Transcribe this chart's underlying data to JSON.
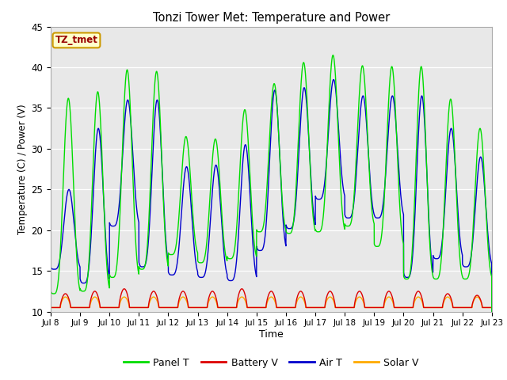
{
  "title": "Tonzi Tower Met: Temperature and Power",
  "xlabel": "Time",
  "ylabel": "Temperature (C) / Power (V)",
  "ylim": [
    10,
    45
  ],
  "xlim": [
    0,
    15
  ],
  "x_tick_labels": [
    "Jul 8",
    "Jul 9",
    "Jul 10",
    "Jul 11",
    "Jul 12",
    "Jul 13",
    "Jul 14",
    "Jul 15",
    "Jul 16",
    "Jul 17",
    "Jul 18",
    "Jul 19",
    "Jul 20",
    "Jul 21",
    "Jul 22",
    "Jul 23"
  ],
  "fig_bg_color": "#ffffff",
  "plot_bg_color": "#e8e8e8",
  "panel_T_color": "#00dd00",
  "battery_V_color": "#dd0000",
  "air_T_color": "#0000cc",
  "solar_V_color": "#ffaa00",
  "legend_label_panel": "Panel T",
  "legend_label_battery": "Battery V",
  "legend_label_air": "Air T",
  "legend_label_solar": "Solar V",
  "timezone_label": "TZ_tmet",
  "yticks": [
    10,
    15,
    20,
    25,
    30,
    35,
    40,
    45
  ],
  "panel_T_peaks": [
    36.2,
    37.0,
    39.7,
    39.5,
    31.5,
    31.2,
    34.8,
    38.0,
    40.6,
    41.5,
    40.2,
    40.1,
    40.1,
    36.1,
    32.5
  ],
  "panel_T_mins": [
    12.2,
    12.5,
    14.2,
    15.2,
    17.0,
    16.0,
    16.5,
    19.8,
    19.6,
    19.8,
    20.5,
    18.0,
    14.0,
    14.0,
    14.0
  ],
  "air_T_peaks": [
    25.0,
    32.5,
    36.0,
    36.0,
    27.8,
    28.0,
    30.5,
    37.2,
    37.5,
    38.5,
    36.5,
    36.5,
    36.5,
    32.5,
    29.0
  ],
  "air_T_mins": [
    15.2,
    13.5,
    20.5,
    15.5,
    14.5,
    14.2,
    13.8,
    17.5,
    20.2,
    23.8,
    21.5,
    21.5,
    14.2,
    16.5,
    15.5
  ],
  "battery_V_peaks": [
    12.2,
    12.5,
    12.8,
    12.5,
    12.5,
    12.5,
    12.8,
    12.5,
    12.5,
    12.5,
    12.5,
    12.5,
    12.5,
    12.2,
    12.0
  ],
  "battery_V_base": 10.5,
  "solar_V_base": 10.5,
  "solar_V_peak": 11.8,
  "grid_color": "#ffffff",
  "spine_color": "#aaaaaa"
}
